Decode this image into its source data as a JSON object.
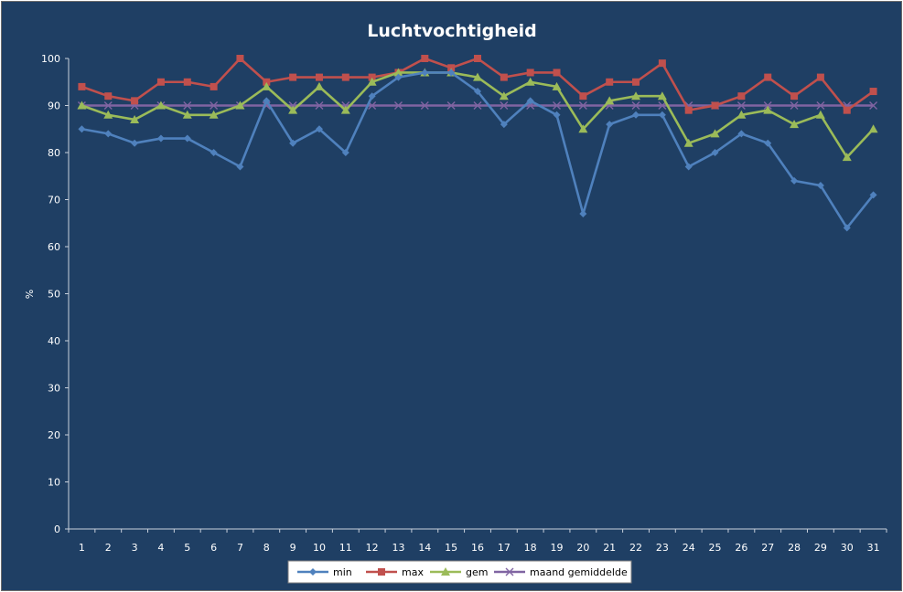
{
  "chart_data": {
    "type": "line",
    "title": "Luchtvochtigheid",
    "xlabel": "",
    "ylabel": "%",
    "ylim": [
      0,
      100
    ],
    "yticks": [
      0,
      10,
      20,
      30,
      40,
      50,
      60,
      70,
      80,
      90,
      100
    ],
    "grid": false,
    "legend_position": "bottom",
    "categories": [
      "1",
      "2",
      "3",
      "4",
      "5",
      "6",
      "7",
      "8",
      "9",
      "10",
      "11",
      "12",
      "13",
      "14",
      "15",
      "16",
      "17",
      "18",
      "19",
      "20",
      "21",
      "22",
      "23",
      "24",
      "25",
      "26",
      "27",
      "28",
      "29",
      "30",
      "31"
    ],
    "series": [
      {
        "name": "min",
        "color": "#4f81bd",
        "marker": "diamond",
        "values": [
          85,
          84,
          82,
          83,
          83,
          80,
          77,
          91,
          82,
          85,
          80,
          92,
          96,
          97,
          97,
          93,
          86,
          91,
          88,
          67,
          86,
          88,
          88,
          77,
          80,
          84,
          82,
          74,
          73,
          64,
          71
        ]
      },
      {
        "name": "max",
        "color": "#c0504d",
        "marker": "square",
        "values": [
          94,
          92,
          91,
          95,
          95,
          94,
          100,
          95,
          96,
          96,
          96,
          96,
          97,
          100,
          98,
          100,
          96,
          97,
          97,
          92,
          95,
          95,
          99,
          89,
          90,
          92,
          96,
          92,
          96,
          89,
          93
        ]
      },
      {
        "name": "gem",
        "color": "#9bbb59",
        "marker": "triangle",
        "values": [
          90,
          88,
          87,
          90,
          88,
          88,
          90,
          94,
          89,
          94,
          89,
          95,
          97,
          97,
          97,
          96,
          92,
          95,
          94,
          85,
          91,
          92,
          92,
          82,
          84,
          88,
          89,
          86,
          88,
          79,
          85
        ]
      },
      {
        "name": "maand gemiddelde",
        "color": "#8064a2",
        "marker": "x",
        "values": [
          90,
          90,
          90,
          90,
          90,
          90,
          90,
          90,
          90,
          90,
          90,
          90,
          90,
          90,
          90,
          90,
          90,
          90,
          90,
          90,
          90,
          90,
          90,
          90,
          90,
          90,
          90,
          90,
          90,
          90,
          90
        ]
      }
    ]
  }
}
